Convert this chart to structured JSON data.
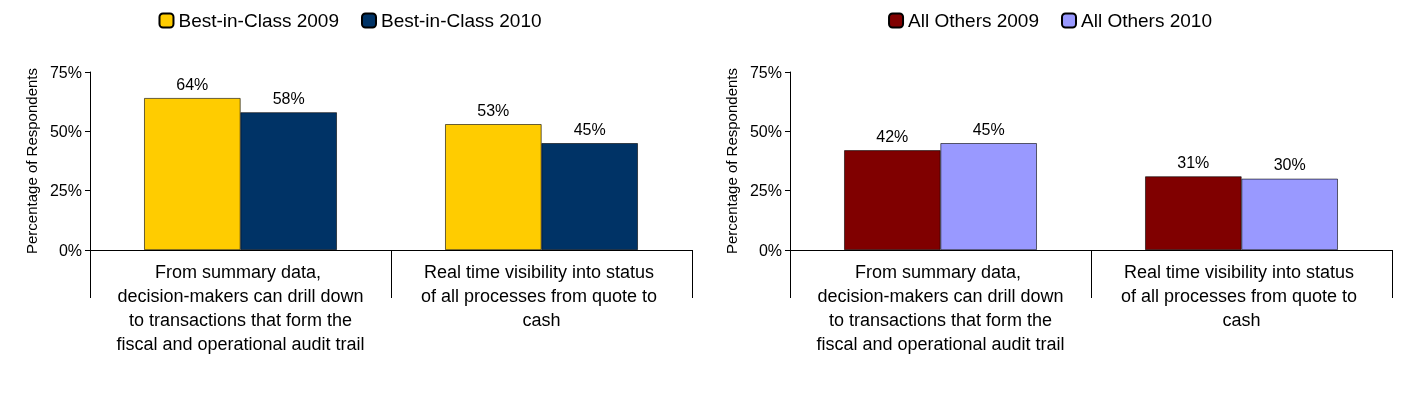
{
  "chart_data": [
    {
      "type": "bar",
      "ylabel": "Percentage of Respondents",
      "categories": [
        "From summary data, decision-makers can drill down to transactions that form the fiscal and operational audit trail",
        "Real time visibility into status of all processes from quote to cash"
      ],
      "series": [
        {
          "name": "Best-in-Class 2009",
          "color": "#ffcc00",
          "values": [
            64,
            53
          ],
          "value_labels": [
            "64%",
            "53%"
          ]
        },
        {
          "name": "Best-in-Class 2010",
          "color": "#003366",
          "values": [
            58,
            45
          ],
          "value_labels": [
            "58%",
            "45%"
          ]
        }
      ],
      "ylim": [
        0,
        75
      ],
      "yticks": [
        {
          "value": 0,
          "label": "0%"
        },
        {
          "value": 25,
          "label": "25%"
        },
        {
          "value": 50,
          "label": "50%"
        },
        {
          "value": 75,
          "label": "75%"
        }
      ],
      "grid": false,
      "legend": "top"
    },
    {
      "type": "bar",
      "ylabel": "Percentage of Respondents",
      "categories": [
        "From summary data, decision-makers can drill down to transactions that form the fiscal and operational audit trail",
        "Real time visibility into status of all processes from quote to cash"
      ],
      "series": [
        {
          "name": "All Others 2009",
          "color": "#800000",
          "values": [
            42,
            31
          ],
          "value_labels": [
            "42%",
            "31%"
          ]
        },
        {
          "name": "All Others 2010",
          "color": "#9999ff",
          "values": [
            45,
            30
          ],
          "value_labels": [
            "45%",
            "30%"
          ]
        }
      ],
      "ylim": [
        0,
        75
      ],
      "yticks": [
        {
          "value": 0,
          "label": "0%"
        },
        {
          "value": 25,
          "label": "25%"
        },
        {
          "value": 50,
          "label": "50%"
        },
        {
          "value": 75,
          "label": "75%"
        }
      ],
      "grid": false,
      "legend": "top"
    }
  ]
}
